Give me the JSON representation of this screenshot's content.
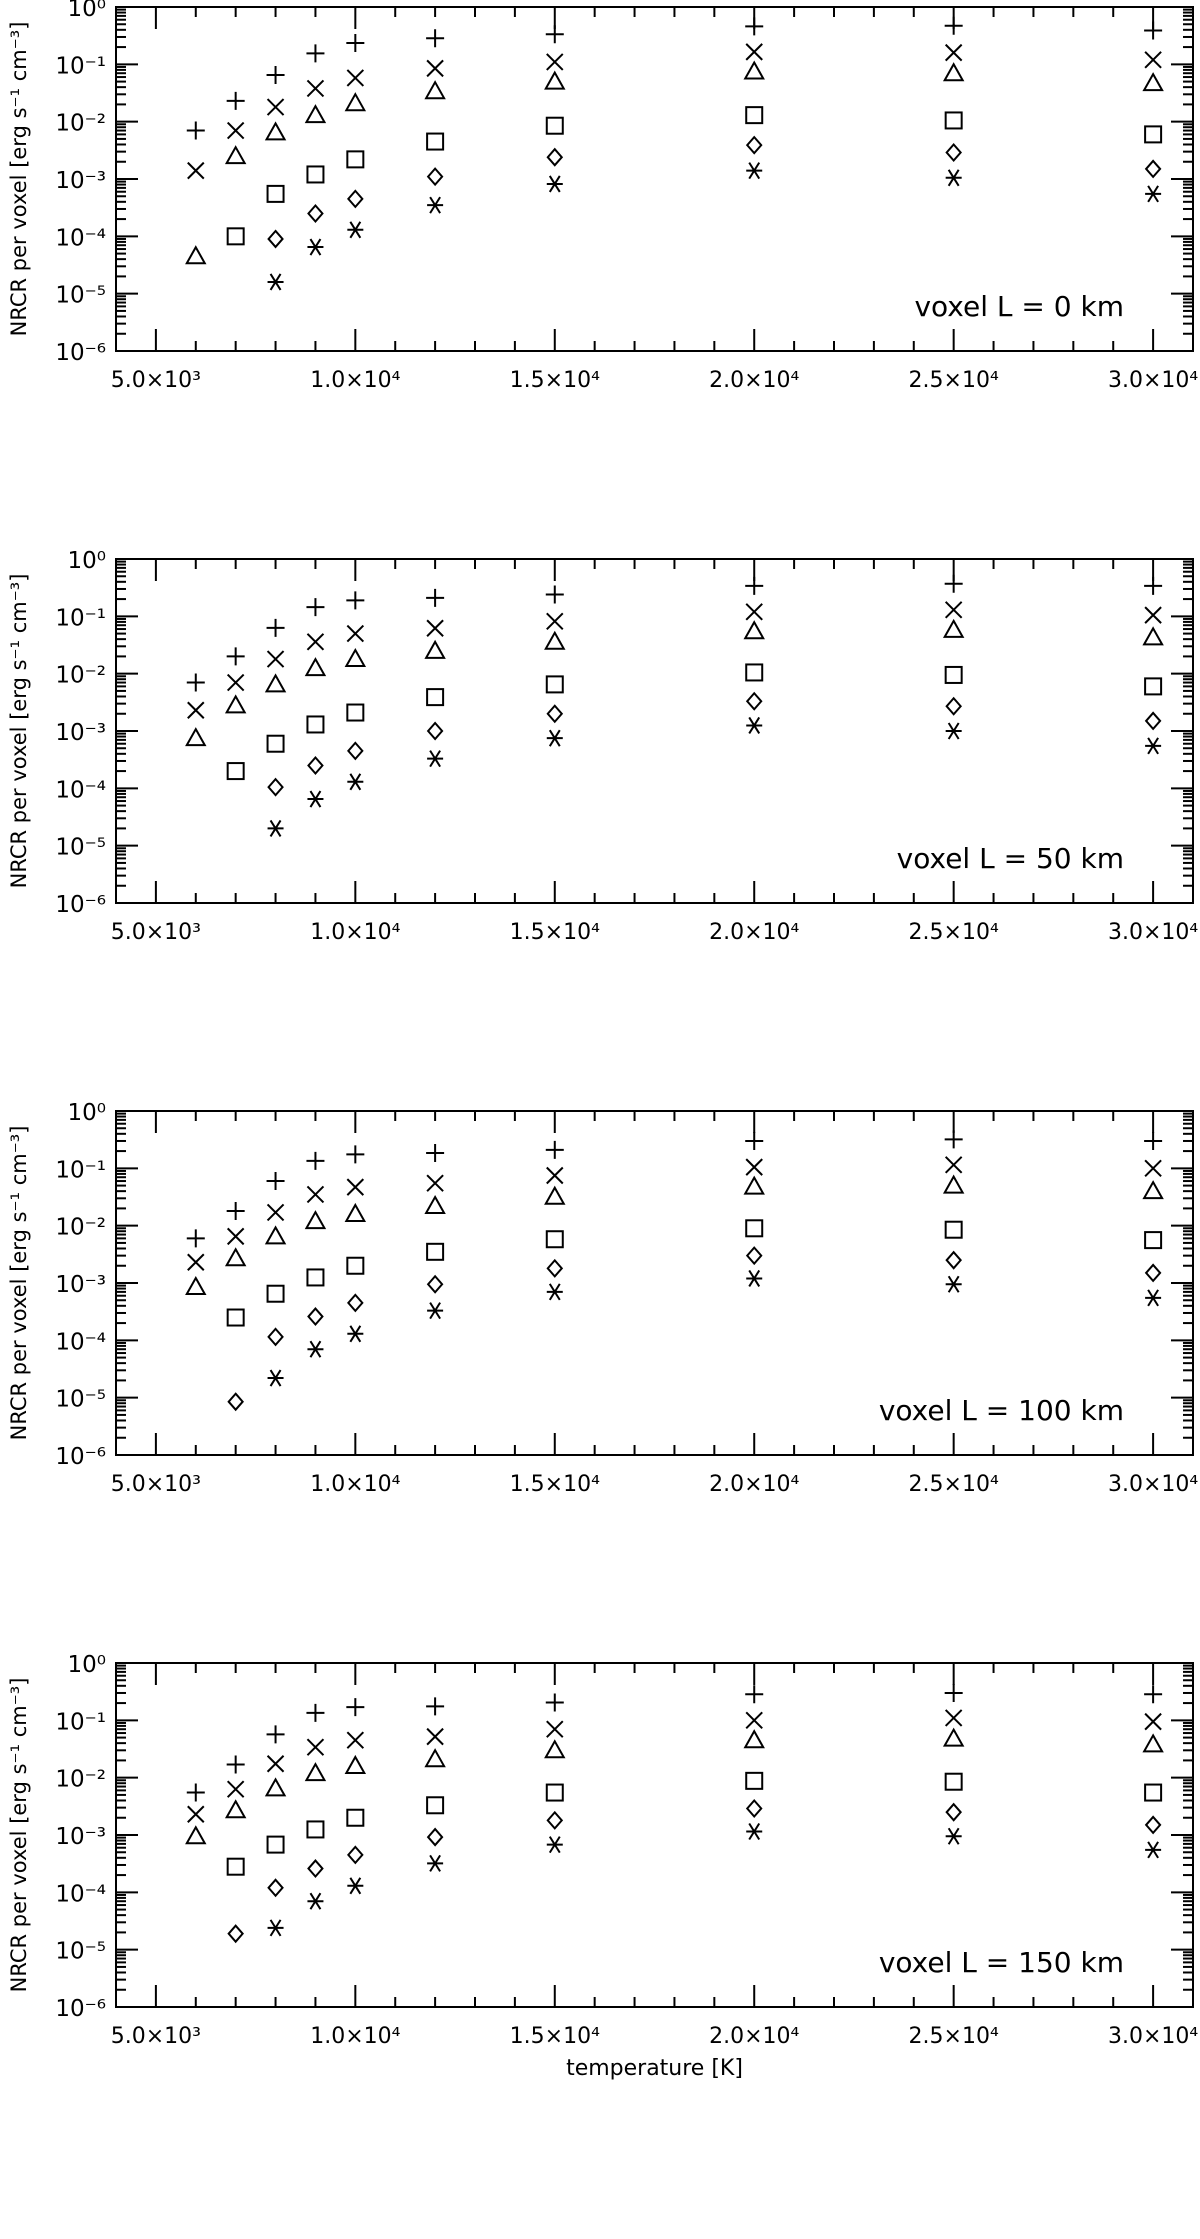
{
  "chart_data": [
    {
      "type": "scatter",
      "annotation": "voxel L = 0 km",
      "ylabel": "NRCR per voxel [erg s⁻¹ cm⁻³]",
      "xlabel": "",
      "xlim": [
        4000,
        31000
      ],
      "ylim": [
        1e-06,
        1
      ],
      "yscale": "log",
      "x_ticks": [
        {
          "value": 5000,
          "label": "5.0×10³"
        },
        {
          "value": 10000,
          "label": "1.0×10⁴"
        },
        {
          "value": 15000,
          "label": "1.5×10⁴"
        },
        {
          "value": 20000,
          "label": "2.0×10⁴"
        },
        {
          "value": 25000,
          "label": "2.5×10⁴"
        },
        {
          "value": 30000,
          "label": "3.0×10⁴"
        }
      ],
      "y_ticks": [
        {
          "value": 1e-06,
          "label": "10⁻⁶"
        },
        {
          "value": 1e-05,
          "label": "10⁻⁵"
        },
        {
          "value": 0.0001,
          "label": "10⁻⁴"
        },
        {
          "value": 0.001,
          "label": "10⁻³"
        },
        {
          "value": 0.01,
          "label": "10⁻²"
        },
        {
          "value": 0.1,
          "label": "10⁻¹"
        },
        {
          "value": 1,
          "label": "10⁰"
        }
      ],
      "x": [
        6000,
        7000,
        8000,
        9000,
        10000,
        12000,
        15000,
        20000,
        25000,
        30000
      ],
      "series": [
        {
          "symbol": "plus",
          "values": [
            0.007,
            0.023,
            0.065,
            0.155,
            0.235,
            0.285,
            0.335,
            0.46,
            0.47,
            0.39
          ]
        },
        {
          "symbol": "cross",
          "values": [
            0.0014,
            0.007,
            0.018,
            0.038,
            0.058,
            0.085,
            0.11,
            0.165,
            0.16,
            0.12
          ]
        },
        {
          "symbol": "triangle",
          "values": [
            4.5e-05,
            0.0025,
            0.0065,
            0.013,
            0.021,
            0.034,
            0.05,
            0.075,
            0.07,
            0.047
          ]
        },
        {
          "symbol": "square",
          "values": [
            null,
            0.0001,
            0.00055,
            0.0012,
            0.0022,
            0.0045,
            0.0085,
            0.013,
            0.0105,
            0.006
          ]
        },
        {
          "symbol": "diamond",
          "values": [
            null,
            null,
            9e-05,
            0.00025,
            0.00045,
            0.0011,
            0.0024,
            0.0039,
            0.0029,
            0.0015
          ]
        },
        {
          "symbol": "asterisk",
          "values": [
            null,
            null,
            1.6e-05,
            6.5e-05,
            0.00013,
            0.00035,
            0.00082,
            0.0014,
            0.00105,
            0.00055
          ]
        }
      ]
    },
    {
      "type": "scatter",
      "annotation": "voxel L = 50 km",
      "ylabel": "NRCR per voxel [erg s⁻¹ cm⁻³]",
      "xlabel": "",
      "xlim": [
        4000,
        31000
      ],
      "ylim": [
        1e-06,
        1
      ],
      "yscale": "log",
      "x_ticks": [
        {
          "value": 5000,
          "label": "5.0×10³"
        },
        {
          "value": 10000,
          "label": "1.0×10⁴"
        },
        {
          "value": 15000,
          "label": "1.5×10⁴"
        },
        {
          "value": 20000,
          "label": "2.0×10⁴"
        },
        {
          "value": 25000,
          "label": "2.5×10⁴"
        },
        {
          "value": 30000,
          "label": "3.0×10⁴"
        }
      ],
      "y_ticks": [
        {
          "value": 1e-06,
          "label": "10⁻⁶"
        },
        {
          "value": 1e-05,
          "label": "10⁻⁵"
        },
        {
          "value": 0.0001,
          "label": "10⁻⁴"
        },
        {
          "value": 0.001,
          "label": "10⁻³"
        },
        {
          "value": 0.01,
          "label": "10⁻²"
        },
        {
          "value": 0.1,
          "label": "10⁻¹"
        },
        {
          "value": 1,
          "label": "10⁰"
        }
      ],
      "x": [
        6000,
        7000,
        8000,
        9000,
        10000,
        12000,
        15000,
        20000,
        25000,
        30000
      ],
      "series": [
        {
          "symbol": "plus",
          "values": [
            0.007,
            0.02,
            0.063,
            0.145,
            0.19,
            0.21,
            0.24,
            0.34,
            0.37,
            0.34
          ]
        },
        {
          "symbol": "cross",
          "values": [
            0.0023,
            0.007,
            0.018,
            0.036,
            0.05,
            0.062,
            0.082,
            0.12,
            0.13,
            0.105
          ]
        },
        {
          "symbol": "triangle",
          "values": [
            0.00075,
            0.0028,
            0.0065,
            0.0125,
            0.018,
            0.025,
            0.036,
            0.055,
            0.058,
            0.043
          ]
        },
        {
          "symbol": "square",
          "values": [
            null,
            0.0002,
            0.0006,
            0.0013,
            0.0021,
            0.0039,
            0.0065,
            0.0105,
            0.0095,
            0.006
          ]
        },
        {
          "symbol": "diamond",
          "values": [
            null,
            null,
            0.000105,
            0.00025,
            0.00045,
            0.001,
            0.002,
            0.0033,
            0.0027,
            0.0015
          ]
        },
        {
          "symbol": "asterisk",
          "values": [
            null,
            null,
            2e-05,
            6.5e-05,
            0.00013,
            0.00033,
            0.00075,
            0.00125,
            0.001,
            0.00055
          ]
        }
      ]
    },
    {
      "type": "scatter",
      "annotation": "voxel L = 100 km",
      "ylabel": "NRCR per voxel [erg s⁻¹ cm⁻³]",
      "xlabel": "",
      "xlim": [
        4000,
        31000
      ],
      "ylim": [
        1e-06,
        1
      ],
      "yscale": "log",
      "x_ticks": [
        {
          "value": 5000,
          "label": "5.0×10³"
        },
        {
          "value": 10000,
          "label": "1.0×10⁴"
        },
        {
          "value": 15000,
          "label": "1.5×10⁴"
        },
        {
          "value": 20000,
          "label": "2.0×10⁴"
        },
        {
          "value": 25000,
          "label": "2.5×10⁴"
        },
        {
          "value": 30000,
          "label": "3.0×10⁴"
        }
      ],
      "y_ticks": [
        {
          "value": 1e-06,
          "label": "10⁻⁶"
        },
        {
          "value": 1e-05,
          "label": "10⁻⁵"
        },
        {
          "value": 0.0001,
          "label": "10⁻⁴"
        },
        {
          "value": 0.001,
          "label": "10⁻³"
        },
        {
          "value": 0.01,
          "label": "10⁻²"
        },
        {
          "value": 0.1,
          "label": "10⁻¹"
        },
        {
          "value": 1,
          "label": "10⁰"
        }
      ],
      "x": [
        6000,
        7000,
        8000,
        9000,
        10000,
        12000,
        15000,
        20000,
        25000,
        30000
      ],
      "series": [
        {
          "symbol": "plus",
          "values": [
            0.006,
            0.018,
            0.06,
            0.135,
            0.175,
            0.185,
            0.21,
            0.3,
            0.32,
            0.3
          ]
        },
        {
          "symbol": "cross",
          "values": [
            0.0023,
            0.0065,
            0.017,
            0.035,
            0.047,
            0.055,
            0.075,
            0.105,
            0.115,
            0.1
          ]
        },
        {
          "symbol": "triangle",
          "values": [
            0.00085,
            0.0027,
            0.0065,
            0.012,
            0.016,
            0.022,
            0.032,
            0.048,
            0.05,
            0.04
          ]
        },
        {
          "symbol": "square",
          "values": [
            null,
            0.00025,
            0.00065,
            0.00125,
            0.002,
            0.0035,
            0.0058,
            0.009,
            0.0085,
            0.0056
          ]
        },
        {
          "symbol": "diamond",
          "values": [
            null,
            8.5e-06,
            0.000115,
            0.00026,
            0.00045,
            0.00095,
            0.0018,
            0.003,
            0.0025,
            0.0015
          ]
        },
        {
          "symbol": "asterisk",
          "values": [
            null,
            null,
            2.2e-05,
            7e-05,
            0.00013,
            0.00033,
            0.0007,
            0.0012,
            0.00095,
            0.00055
          ]
        }
      ]
    },
    {
      "type": "scatter",
      "annotation": "voxel L = 150 km",
      "ylabel": "NRCR per voxel [erg s⁻¹ cm⁻³]",
      "xlabel": "temperature [K]",
      "xlim": [
        4000,
        31000
      ],
      "ylim": [
        1e-06,
        1
      ],
      "yscale": "log",
      "x_ticks": [
        {
          "value": 5000,
          "label": "5.0×10³"
        },
        {
          "value": 10000,
          "label": "1.0×10⁴"
        },
        {
          "value": 15000,
          "label": "1.5×10⁴"
        },
        {
          "value": 20000,
          "label": "2.0×10⁴"
        },
        {
          "value": 25000,
          "label": "2.5×10⁴"
        },
        {
          "value": 30000,
          "label": "3.0×10⁴"
        }
      ],
      "y_ticks": [
        {
          "value": 1e-06,
          "label": "10⁻⁶"
        },
        {
          "value": 1e-05,
          "label": "10⁻⁵"
        },
        {
          "value": 0.0001,
          "label": "10⁻⁴"
        },
        {
          "value": 0.001,
          "label": "10⁻³"
        },
        {
          "value": 0.01,
          "label": "10⁻²"
        },
        {
          "value": 0.1,
          "label": "10⁻¹"
        },
        {
          "value": 1,
          "label": "10⁰"
        }
      ],
      "x": [
        6000,
        7000,
        8000,
        9000,
        10000,
        12000,
        15000,
        20000,
        25000,
        30000
      ],
      "series": [
        {
          "symbol": "plus",
          "values": [
            0.0055,
            0.017,
            0.057,
            0.135,
            0.17,
            0.175,
            0.205,
            0.285,
            0.3,
            0.285
          ]
        },
        {
          "symbol": "cross",
          "values": [
            0.0023,
            0.0063,
            0.0175,
            0.034,
            0.045,
            0.052,
            0.07,
            0.1,
            0.11,
            0.095
          ]
        },
        {
          "symbol": "triangle",
          "values": [
            0.00095,
            0.0027,
            0.0065,
            0.012,
            0.016,
            0.021,
            0.03,
            0.045,
            0.048,
            0.038
          ]
        },
        {
          "symbol": "square",
          "values": [
            null,
            0.00028,
            0.00068,
            0.00125,
            0.002,
            0.0033,
            0.0055,
            0.0088,
            0.0085,
            0.0055
          ]
        },
        {
          "symbol": "diamond",
          "values": [
            null,
            1.9e-05,
            0.00012,
            0.00026,
            0.00045,
            0.00092,
            0.0018,
            0.0029,
            0.0025,
            0.0015
          ]
        },
        {
          "symbol": "asterisk",
          "values": [
            null,
            null,
            2.4e-05,
            7e-05,
            0.00013,
            0.00032,
            0.00068,
            0.00115,
            0.00095,
            0.00055
          ]
        }
      ]
    }
  ]
}
